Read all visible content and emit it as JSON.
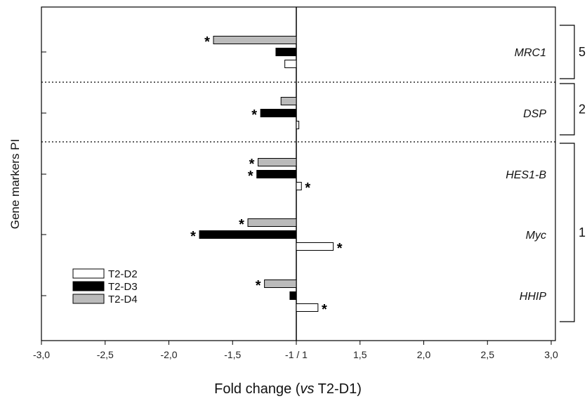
{
  "chart_data": {
    "type": "bar",
    "orientation": "horizontal",
    "xlabel_prefix": "Fold change (",
    "xlabel_italic": "vs",
    "xlabel_suffix": " T2-D1)",
    "ylabel": "Gene markers PI",
    "xlim": [
      -3.0,
      3.0
    ],
    "x_ticks": [
      -3.0,
      -2.5,
      -2.0,
      -1.5,
      -1.0,
      1.5,
      2.0,
      2.5,
      3.0
    ],
    "x_tick_labels": [
      "-3,0",
      "-2,5",
      "-2,0",
      "-1,5",
      "-1 / 1",
      "1,5",
      "2,0",
      "2,5",
      "3,0"
    ],
    "categories": [
      "MRC1",
      "DSP",
      "HES1-B",
      "Myc",
      "HHIP"
    ],
    "series": [
      {
        "name": "T2-D2",
        "color": "#ffffff",
        "values": [
          -1.09,
          1.02,
          1.04,
          1.29,
          1.17
        ],
        "significant": [
          false,
          false,
          true,
          true,
          true
        ]
      },
      {
        "name": "T2-D3",
        "color": "#000000",
        "values": [
          -1.16,
          -1.28,
          -1.31,
          -1.76,
          -1.05
        ],
        "significant": [
          false,
          true,
          true,
          true,
          false
        ]
      },
      {
        "name": "T2-D4",
        "color": "#bbbbbb",
        "values": [
          -1.65,
          -1.12,
          -1.3,
          -1.38,
          -1.25
        ],
        "significant": [
          true,
          false,
          true,
          true,
          true
        ]
      }
    ],
    "groups": [
      {
        "label": "5",
        "genes": [
          "MRC1"
        ]
      },
      {
        "label": "2",
        "genes": [
          "DSP"
        ]
      },
      {
        "label": "1",
        "genes": [
          "HES1-B",
          "Myc",
          "HHIP"
        ]
      }
    ],
    "significance_marker": "*",
    "legend_position": "bottom-left",
    "grid": false
  }
}
